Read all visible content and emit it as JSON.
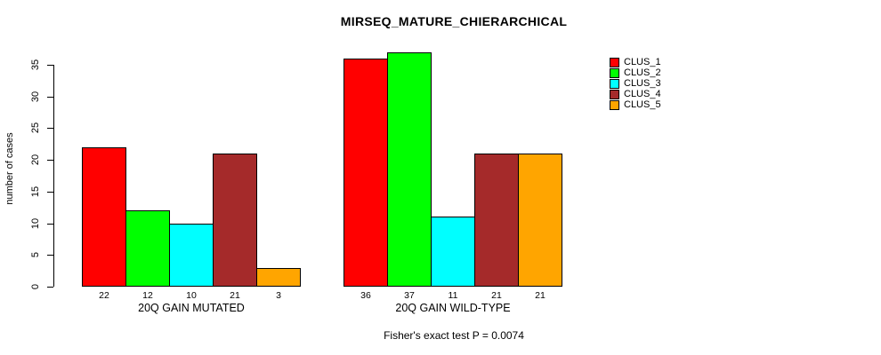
{
  "chart_data": {
    "type": "bar",
    "title": "MIRSEQ_MATURE_CHIERARCHICAL",
    "xlabel": "",
    "ylabel": "number of cases",
    "ylim": [
      0,
      37
    ],
    "yticks": [
      0,
      5,
      10,
      15,
      20,
      25,
      30,
      35
    ],
    "grid": false,
    "legend_position": "right",
    "categories": [
      "20Q GAIN MUTATED",
      "20Q GAIN WILD-TYPE"
    ],
    "series": [
      {
        "name": "CLUS_1",
        "color": "#ff0000",
        "values": [
          22,
          36
        ]
      },
      {
        "name": "CLUS_2",
        "color": "#00ff00",
        "values": [
          12,
          37
        ]
      },
      {
        "name": "CLUS_3",
        "color": "#00ffff",
        "values": [
          10,
          11
        ]
      },
      {
        "name": "CLUS_4",
        "color": "#a52a2a",
        "values": [
          21,
          21
        ]
      },
      {
        "name": "CLUS_5",
        "color": "#ffa500",
        "values": [
          3,
          21
        ]
      }
    ],
    "groups": [
      {
        "label": "20Q GAIN MUTATED",
        "values": [
          22,
          12,
          10,
          21,
          3
        ]
      },
      {
        "label": "20Q GAIN WILD-TYPE",
        "values": [
          36,
          37,
          11,
          21,
          21
        ]
      }
    ],
    "bar_border_color": "#000000",
    "annotation": "Fisher's exact test P = 0.0074"
  }
}
